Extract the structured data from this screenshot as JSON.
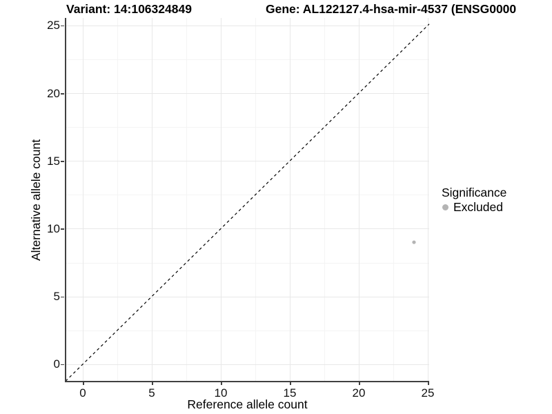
{
  "titles": {
    "variant": "Variant: 14:106324849",
    "gene": "Gene: AL122127.4-hsa-mir-4537 (ENSG0000"
  },
  "axes": {
    "x_label": "Reference allele count",
    "y_label": "Alternative allele count"
  },
  "legend": {
    "title": "Significance",
    "entries": [
      {
        "label": "Excluded",
        "color": "#b4b4b4"
      }
    ]
  },
  "chart_data": {
    "type": "scatter",
    "title": "Variant: 14:106324849",
    "title_right": "Gene: AL122127.4-hsa-mir-4537 (ENSG0000",
    "xlabel": "Reference allele count",
    "ylabel": "Alternative allele count",
    "xlim": [
      -1.25,
      25.1
    ],
    "ylim": [
      -1.28,
      25.55
    ],
    "xticks": [
      0,
      5,
      10,
      15,
      20,
      25
    ],
    "yticks": [
      0,
      5,
      10,
      15,
      20,
      25
    ],
    "xminor": [
      2.5,
      7.5,
      12.5,
      17.5,
      22.5
    ],
    "yminor": [
      2.5,
      7.5,
      12.5,
      17.5,
      22.5
    ],
    "grid": "major-and-minor",
    "legend_position": "right",
    "identity_line": {
      "type": "abline",
      "slope": 1,
      "intercept": 0,
      "style": "dashed"
    },
    "series": [
      {
        "name": "Excluded",
        "color": "#b4b4b4",
        "points": [
          {
            "x": 24,
            "y": 9
          }
        ]
      }
    ],
    "colors": {
      "point": "#b4b4b4",
      "grid_major": "#e8e8e8",
      "grid_minor": "#f4f4f4",
      "axis_line": "#404040",
      "identity_line": "#000000",
      "background": "#ffffff"
    }
  }
}
